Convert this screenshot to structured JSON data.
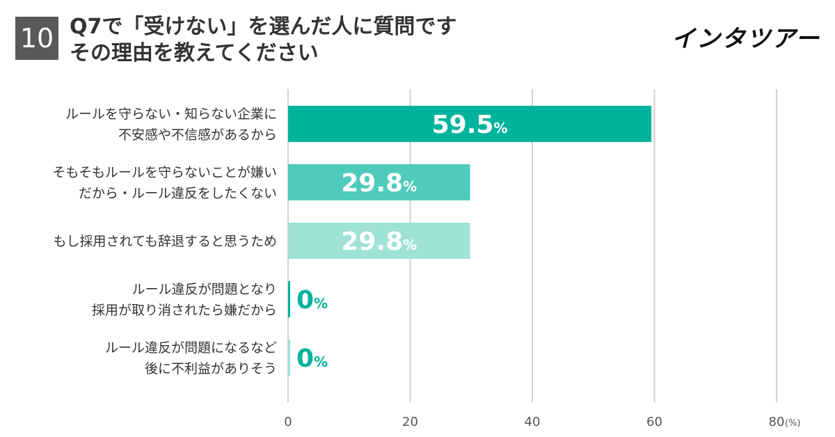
{
  "header": {
    "badge": "10",
    "title_line1": "Q7で「受けない」を選んだ人に質問です",
    "title_line2": "その理由を教えてください",
    "logo": "インタツアー"
  },
  "chart_data": {
    "type": "bar",
    "orientation": "horizontal",
    "categories": [
      [
        "ルールを守らない・知らない企業に",
        "不安感や不信感があるから"
      ],
      [
        "そもそもルールを守らないことが嫌い",
        "だから・ルール違反をしたくない"
      ],
      [
        "もし採用されても辞退すると思うため"
      ],
      [
        "ルール違反が問題となり",
        "採用が取り消されたら嫌だから"
      ],
      [
        "ルール違反が問題になるなど",
        "後に不利益がありそう"
      ]
    ],
    "values": [
      59.5,
      29.8,
      29.8,
      0,
      0
    ],
    "value_labels": [
      "59.5",
      "29.8",
      "29.8",
      "0",
      "0"
    ],
    "value_unit": "%",
    "bar_colors": [
      "#00b39c",
      "#4ecbbb",
      "#9ee2d8",
      "#00b39c",
      "#9ee2d8"
    ],
    "xlim": [
      0,
      80
    ],
    "xticks": [
      "0",
      "20",
      "40",
      "60",
      "80"
    ],
    "xunit": "(%)",
    "grid": true
  }
}
